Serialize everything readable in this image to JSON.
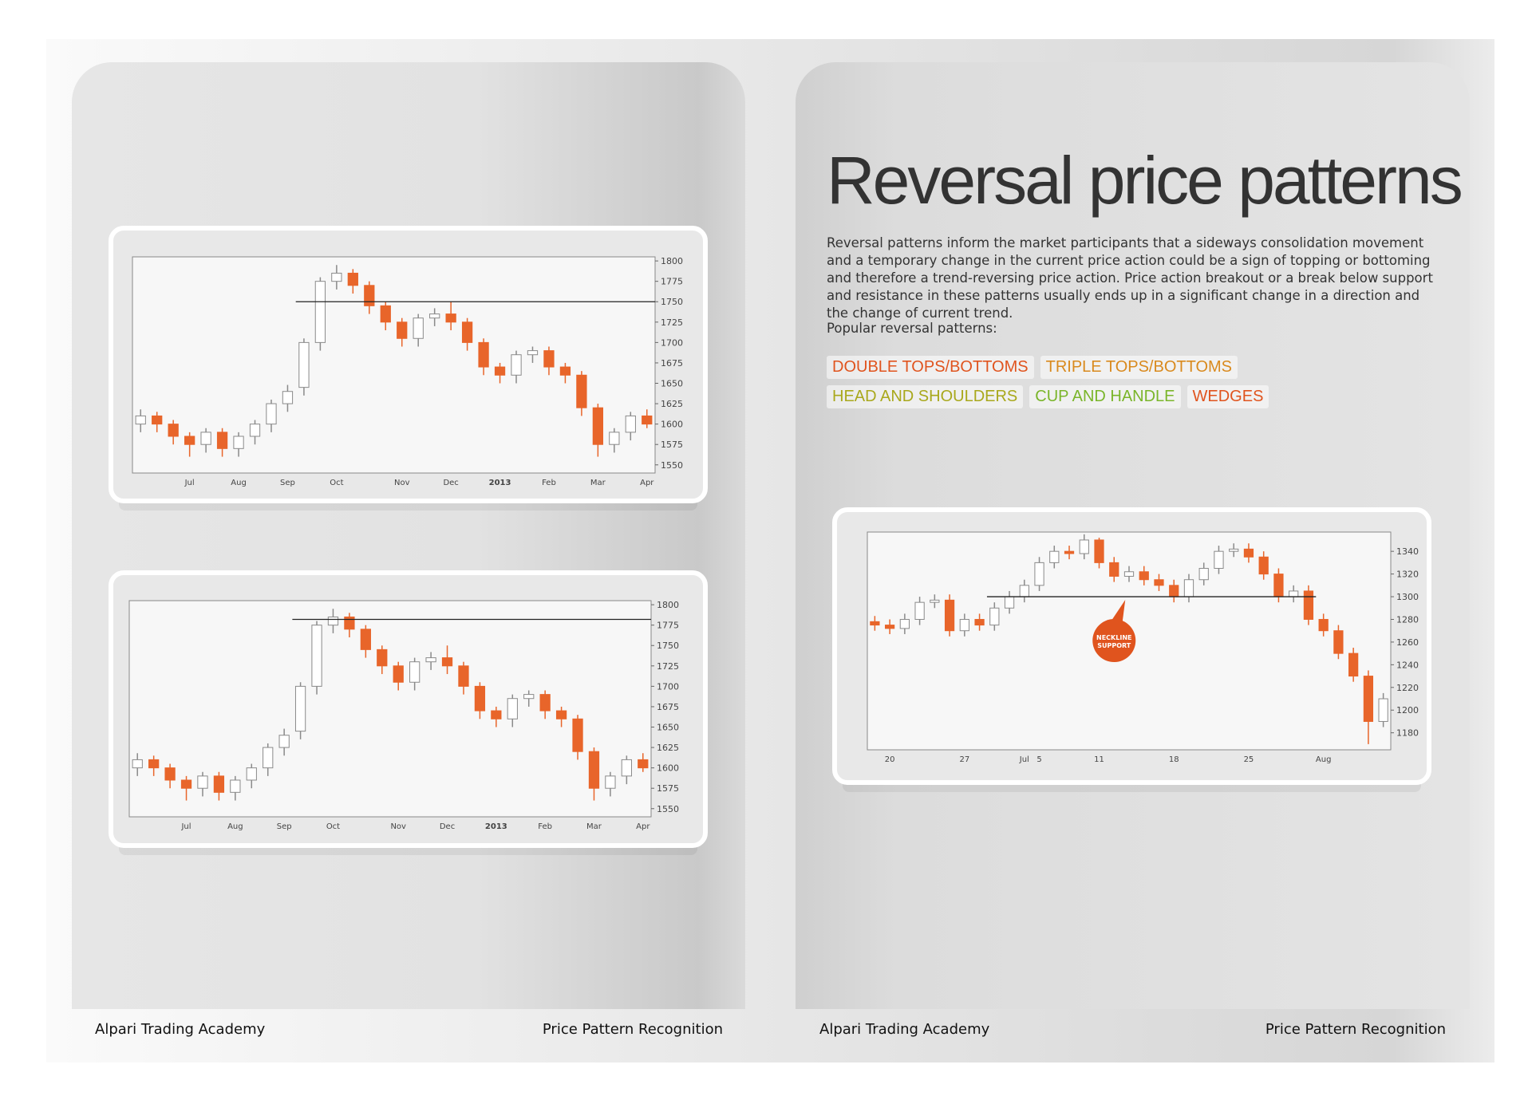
{
  "left_page": {
    "footer_left": "Alpari Trading Academy",
    "footer_right": "Price Pattern Recognition"
  },
  "right_page": {
    "title": "Reversal price patterns",
    "body": "Reversal patterns inform the market participants that a sideways consolidation movement and a temporary change in the current price action could be a sign of topping or bottoming and therefore a trend-reversing price action. Price action breakout or a break below support and resistance in these patterns usually ends up in a significant change in a direction and the change of current trend.",
    "list_intro": "Popular reversal patterns:",
    "tags": [
      {
        "text": "DOUBLE TOPS/BOTTOMS",
        "color": "#e0541e"
      },
      {
        "text": "TRIPLE TOPS/BOTTOMS",
        "color": "#d98a1e"
      },
      {
        "text": "HEAD AND SHOULDERS",
        "color": "#a9a81c"
      },
      {
        "text": "CUP AND HANDLE",
        "color": "#7ab52a"
      },
      {
        "text": "WEDGES",
        "color": "#e0541e"
      }
    ],
    "footer_left": "Alpari Trading Academy",
    "footer_right": "Price Pattern Recognition"
  },
  "chart_data": [
    {
      "type": "candlestick",
      "up_color": "#8a8a8a",
      "down_color": "#e8652a",
      "x": [
        null,
        null,
        null,
        "Jul",
        null,
        null,
        "Aug",
        null,
        null,
        "Sep",
        null,
        null,
        "Oct",
        null,
        null,
        null,
        "Nov",
        null,
        null,
        "Dec",
        null,
        null,
        "2013",
        null,
        null,
        "Feb",
        null,
        null,
        "Mar",
        null,
        null,
        "Apr"
      ],
      "open": [
        1600,
        1610,
        1600,
        1585,
        1575,
        1590,
        1570,
        1585,
        1600,
        1625,
        1645,
        1700,
        1775,
        1785,
        1770,
        1745,
        1725,
        1705,
        1730,
        1735,
        1725,
        1700,
        1670,
        1660,
        1685,
        1690,
        1670,
        1660,
        1620,
        1575,
        1590,
        1610
      ],
      "close": [
        1610,
        1600,
        1585,
        1575,
        1590,
        1570,
        1585,
        1600,
        1625,
        1640,
        1700,
        1775,
        1785,
        1770,
        1745,
        1725,
        1705,
        1730,
        1735,
        1725,
        1700,
        1670,
        1660,
        1685,
        1690,
        1670,
        1660,
        1620,
        1575,
        1590,
        1610,
        1600
      ],
      "high": [
        1618,
        1615,
        1605,
        1590,
        1595,
        1595,
        1590,
        1605,
        1630,
        1648,
        1705,
        1780,
        1795,
        1790,
        1775,
        1750,
        1730,
        1735,
        1742,
        1750,
        1730,
        1705,
        1675,
        1690,
        1695,
        1695,
        1675,
        1665,
        1625,
        1595,
        1615,
        1618
      ],
      "low": [
        1590,
        1590,
        1575,
        1560,
        1565,
        1560,
        1560,
        1575,
        1590,
        1615,
        1635,
        1690,
        1765,
        1760,
        1735,
        1715,
        1695,
        1695,
        1720,
        1715,
        1690,
        1660,
        1650,
        1650,
        1675,
        1660,
        1650,
        1610,
        1560,
        1565,
        1580,
        1595
      ],
      "ylim": [
        1540,
        1805
      ],
      "yticks": [
        1550,
        1575,
        1600,
        1625,
        1650,
        1675,
        1700,
        1725,
        1750,
        1775,
        1800
      ],
      "hline": 1750
    },
    {
      "type": "candlestick",
      "up_color": "#8a8a8a",
      "down_color": "#e8652a",
      "x": [
        null,
        null,
        null,
        "Jul",
        null,
        null,
        "Aug",
        null,
        null,
        "Sep",
        null,
        null,
        "Oct",
        null,
        null,
        null,
        "Nov",
        null,
        null,
        "Dec",
        null,
        null,
        "2013",
        null,
        null,
        "Feb",
        null,
        null,
        "Mar",
        null,
        null,
        "Apr"
      ],
      "open": [
        1600,
        1610,
        1600,
        1585,
        1575,
        1590,
        1570,
        1585,
        1600,
        1625,
        1645,
        1700,
        1775,
        1785,
        1770,
        1745,
        1725,
        1705,
        1730,
        1735,
        1725,
        1700,
        1670,
        1660,
        1685,
        1690,
        1670,
        1660,
        1620,
        1575,
        1590,
        1610
      ],
      "close": [
        1610,
        1600,
        1585,
        1575,
        1590,
        1570,
        1585,
        1600,
        1625,
        1640,
        1700,
        1775,
        1785,
        1770,
        1745,
        1725,
        1705,
        1730,
        1735,
        1725,
        1700,
        1670,
        1660,
        1685,
        1690,
        1670,
        1660,
        1620,
        1575,
        1590,
        1610,
        1600
      ],
      "high": [
        1618,
        1615,
        1605,
        1590,
        1595,
        1595,
        1590,
        1605,
        1630,
        1648,
        1705,
        1780,
        1795,
        1790,
        1775,
        1750,
        1730,
        1735,
        1742,
        1750,
        1730,
        1705,
        1675,
        1690,
        1695,
        1695,
        1675,
        1665,
        1625,
        1595,
        1615,
        1618
      ],
      "low": [
        1590,
        1590,
        1575,
        1560,
        1565,
        1560,
        1560,
        1575,
        1590,
        1615,
        1635,
        1690,
        1765,
        1760,
        1735,
        1715,
        1695,
        1695,
        1720,
        1715,
        1690,
        1660,
        1650,
        1650,
        1675,
        1660,
        1650,
        1610,
        1560,
        1565,
        1580,
        1595
      ],
      "ylim": [
        1540,
        1805
      ],
      "yticks": [
        1550,
        1575,
        1600,
        1625,
        1650,
        1675,
        1700,
        1725,
        1750,
        1775,
        1800
      ],
      "hline": 1782
    },
    {
      "type": "candlestick",
      "up_color": "#8a8a8a",
      "down_color": "#e8652a",
      "x": [
        null,
        "20",
        null,
        null,
        null,
        null,
        "27",
        null,
        null,
        null,
        "Jul",
        "5",
        null,
        null,
        null,
        "11",
        null,
        null,
        null,
        null,
        "18",
        null,
        null,
        null,
        null,
        "25",
        null,
        null,
        null,
        null,
        "Aug",
        null,
        null,
        null,
        null
      ],
      "open": [
        1278,
        1275,
        1272,
        1280,
        1295,
        1297,
        1270,
        1280,
        1275,
        1290,
        1300,
        1310,
        1330,
        1340,
        1338,
        1350,
        1330,
        1318,
        1322,
        1315,
        1310,
        1300,
        1315,
        1325,
        1340,
        1342,
        1335,
        1320,
        1300,
        1305,
        1280,
        1270,
        1250,
        1230,
        1190
      ],
      "close": [
        1275,
        1272,
        1280,
        1295,
        1297,
        1270,
        1280,
        1275,
        1290,
        1300,
        1310,
        1330,
        1340,
        1338,
        1350,
        1330,
        1318,
        1322,
        1315,
        1310,
        1300,
        1315,
        1325,
        1340,
        1342,
        1335,
        1320,
        1300,
        1305,
        1280,
        1270,
        1250,
        1230,
        1190,
        1210
      ],
      "high": [
        1283,
        1280,
        1285,
        1300,
        1302,
        1302,
        1285,
        1285,
        1295,
        1305,
        1315,
        1335,
        1345,
        1345,
        1355,
        1352,
        1335,
        1327,
        1327,
        1320,
        1315,
        1320,
        1330,
        1345,
        1347,
        1347,
        1340,
        1325,
        1310,
        1310,
        1285,
        1275,
        1255,
        1235,
        1215
      ],
      "low": [
        1270,
        1267,
        1267,
        1275,
        1290,
        1265,
        1265,
        1270,
        1270,
        1285,
        1295,
        1305,
        1325,
        1333,
        1333,
        1325,
        1313,
        1313,
        1310,
        1305,
        1295,
        1295,
        1310,
        1320,
        1335,
        1330,
        1315,
        1295,
        1295,
        1275,
        1265,
        1245,
        1225,
        1170,
        1185
      ],
      "ylim": [
        1165,
        1357
      ],
      "yticks": [
        1180,
        1200,
        1220,
        1240,
        1260,
        1280,
        1300,
        1320,
        1340
      ],
      "hline": 1300,
      "annotation_lines": [
        "NECKLINE",
        "SUPPORT"
      ]
    }
  ]
}
